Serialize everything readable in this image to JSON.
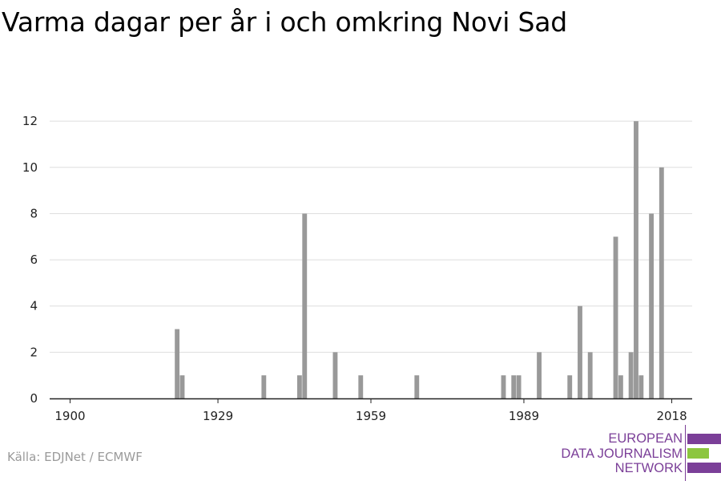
{
  "title": "Varma dagar per år i och omkring Novi Sad",
  "source": "Källa: EDJNet / ECMWF",
  "logo": {
    "lines": [
      "EUROPEAN",
      "DATA JOURNALISM",
      "NETWORK"
    ],
    "colors": {
      "purple": "#7b3f98",
      "green": "#8cc63f"
    }
  },
  "chart_data": {
    "type": "bar",
    "title": "Varma dagar per år i och omkring Novi Sad",
    "xlabel": "",
    "ylabel": "",
    "xlim": [
      1896,
      2022
    ],
    "ylim": [
      0,
      12.7
    ],
    "x_ticks": [
      1900,
      1929,
      1959,
      1989,
      2018
    ],
    "y_ticks": [
      0,
      2,
      4,
      6,
      8,
      10,
      12
    ],
    "grid": true,
    "bar_color": "#999999",
    "x": [
      1921,
      1922,
      1938,
      1945,
      1946,
      1952,
      1957,
      1968,
      1985,
      1987,
      1988,
      1992,
      1998,
      2000,
      2002,
      2007,
      2008,
      2010,
      2011,
      2012,
      2013,
      2014,
      2016
    ],
    "values": [
      3,
      1,
      1,
      1,
      8,
      2,
      1,
      1,
      1,
      1,
      1,
      2,
      1,
      4,
      2,
      7,
      1,
      2,
      12,
      1,
      0,
      8,
      10
    ]
  }
}
